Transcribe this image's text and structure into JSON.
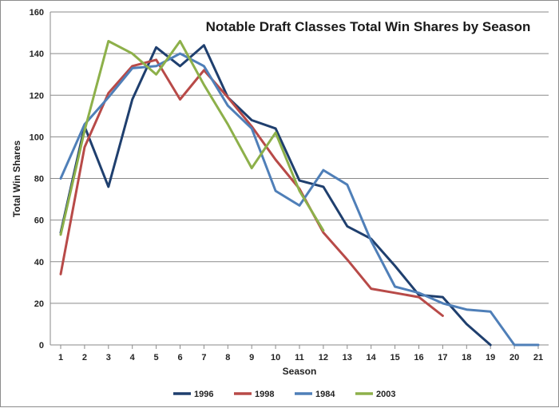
{
  "chart_data": {
    "type": "line",
    "title": "Notable Draft Classes  Total Win Shares by Season",
    "xlabel": "Season",
    "ylabel": "Total Win Shares",
    "ylim": [
      0,
      160
    ],
    "yticks": [
      0,
      20,
      40,
      60,
      80,
      100,
      120,
      140,
      160
    ],
    "x": [
      1,
      2,
      3,
      4,
      5,
      6,
      7,
      8,
      9,
      10,
      11,
      12,
      13,
      14,
      15,
      16,
      17,
      18,
      19,
      20,
      21
    ],
    "grid": "horizontal",
    "legend_position": "bottom",
    "series": [
      {
        "name": "1996",
        "color": "#1f3f6e",
        "values": [
          54,
          105,
          76,
          118,
          143,
          134,
          144,
          119,
          108,
          104,
          79,
          76,
          57,
          51,
          38,
          24,
          23,
          10,
          0,
          null,
          null
        ]
      },
      {
        "name": "1998",
        "color": "#b84a48",
        "values": [
          34,
          95,
          121,
          134,
          137,
          118,
          132,
          119,
          105,
          89,
          75,
          54,
          41,
          27,
          25,
          23,
          14,
          null,
          null,
          null,
          null
        ]
      },
      {
        "name": "1984",
        "color": "#4f7fb8",
        "values": [
          80,
          106,
          119,
          133,
          134,
          140,
          134,
          115,
          104,
          74,
          67,
          84,
          77,
          50,
          28,
          25,
          20,
          17,
          16,
          0,
          0
        ]
      },
      {
        "name": "2003",
        "color": "#8db04a",
        "values": [
          53,
          103,
          146,
          140,
          130,
          146,
          125,
          106,
          85,
          102,
          74,
          55,
          null,
          null,
          null,
          null,
          null,
          null,
          null,
          null,
          null
        ]
      }
    ]
  }
}
